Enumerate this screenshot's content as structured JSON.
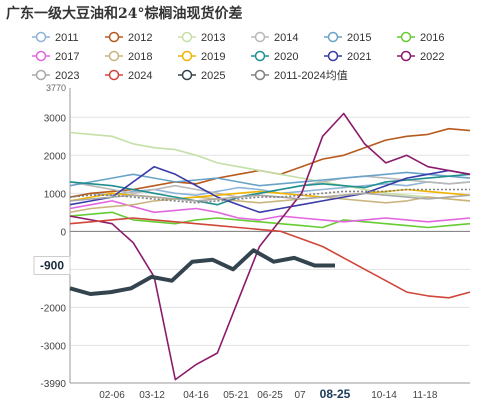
{
  "chart_data": {
    "type": "line",
    "title": "广东一级大豆油和24°棕榈油现货价差",
    "y_ticks": [
      "3000",
      "2000",
      "1000",
      "0",
      "-1000",
      "-2000",
      "-3000",
      "-3990"
    ],
    "y_top_label": "3770",
    "ylim": [
      -3990,
      3770
    ],
    "x_ticks": [
      "02-06",
      "03-12",
      "04-16",
      "05-21",
      "06-25",
      "07",
      "08-25",
      "10-14",
      "11-18"
    ],
    "highlight_x": "08-25",
    "current_value": "-900",
    "grid": true,
    "legend_position": "top",
    "legend": [
      {
        "name": "2011",
        "color": "#8fb4d9"
      },
      {
        "name": "2012",
        "color": "#b85a1e"
      },
      {
        "name": "2013",
        "color": "#c5dfa8"
      },
      {
        "name": "2014",
        "color": "#b9b9b9"
      },
      {
        "name": "2015",
        "color": "#6aa3c8"
      },
      {
        "name": "2016",
        "color": "#66cc33"
      },
      {
        "name": "2017",
        "color": "#e266e0"
      },
      {
        "name": "2018",
        "color": "#c9b57f"
      },
      {
        "name": "2019",
        "color": "#f0b400"
      },
      {
        "name": "2020",
        "color": "#1f8f8f"
      },
      {
        "name": "2021",
        "color": "#3a3aa8"
      },
      {
        "name": "2022",
        "color": "#8b1a6b"
      },
      {
        "name": "2023",
        "color": "#a8a8a8"
      },
      {
        "name": "2024",
        "color": "#d0463a"
      },
      {
        "name": "2025",
        "color": "#34444f"
      },
      {
        "name": "2011-2024均值",
        "color": "#808080"
      }
    ],
    "series": [
      {
        "name": "2011",
        "values": [
          900,
          1000,
          950,
          1050,
          1100,
          1000,
          950,
          1050,
          1150,
          1100,
          1000,
          1050,
          1100,
          1150,
          1200,
          1250,
          1200,
          1300,
          1250,
          1300
        ]
      },
      {
        "name": "2012",
        "values": [
          900,
          1000,
          1050,
          1100,
          1200,
          1300,
          1250,
          1400,
          1500,
          1600,
          1500,
          1700,
          1900,
          2000,
          2200,
          2400,
          2500,
          2550,
          2700,
          2650
        ]
      },
      {
        "name": "2013",
        "values": [
          2600,
          2550,
          2500,
          2300,
          2200,
          2150,
          2000,
          1800,
          1700,
          1600,
          1500,
          1400,
          1300,
          1200,
          1100,
          1000,
          950,
          900,
          850,
          800
        ]
      },
      {
        "name": "2014",
        "values": [
          1300,
          1200,
          1100,
          1000,
          1100,
          1200,
          1100,
          1000,
          900,
          1000,
          1100,
          1200,
          1300,
          1400,
          1450,
          1400,
          1350,
          1300,
          1250,
          1300
        ]
      },
      {
        "name": "2015",
        "values": [
          1200,
          1300,
          1400,
          1500,
          1400,
          1300,
          1350,
          1400,
          1300,
          1200,
          1250,
          1300,
          1350,
          1400,
          1450,
          1500,
          1550,
          1500,
          1450,
          1400
        ]
      },
      {
        "name": "2016",
        "values": [
          400,
          450,
          500,
          300,
          250,
          200,
          300,
          350,
          300,
          250,
          200,
          150,
          100,
          300,
          250,
          200,
          150,
          100,
          150,
          200
        ]
      },
      {
        "name": "2017",
        "values": [
          600,
          700,
          800,
          650,
          500,
          550,
          600,
          500,
          350,
          300,
          400,
          350,
          300,
          250,
          300,
          350,
          300,
          250,
          300,
          350
        ]
      },
      {
        "name": "2018",
        "values": [
          500,
          600,
          650,
          700,
          800,
          850,
          900,
          850,
          800,
          750,
          800,
          850,
          900,
          850,
          800,
          750,
          800,
          900,
          850,
          800
        ]
      },
      {
        "name": "2019",
        "values": [
          800,
          900,
          1000,
          950,
          900,
          850,
          900,
          950,
          1000,
          1050,
          1000,
          950,
          900,
          950,
          1000,
          1050,
          1100,
          1050,
          1000,
          950
        ]
      },
      {
        "name": "2020",
        "values": [
          1300,
          1250,
          1200,
          1100,
          1000,
          900,
          800,
          700,
          900,
          1000,
          1100,
          1200,
          1250,
          1200,
          1150,
          1300,
          1350,
          1400,
          1450,
          1500
        ]
      },
      {
        "name": "2021",
        "values": [
          700,
          800,
          900,
          1300,
          1700,
          1500,
          1200,
          900,
          700,
          500,
          600,
          700,
          800,
          900,
          1000,
          1200,
          1400,
          1500,
          1600,
          1500
        ]
      },
      {
        "name": "2022",
        "values": [
          400,
          300,
          200,
          -300,
          -1200,
          -3900,
          -3500,
          -3200,
          -1800,
          -400,
          300,
          1000,
          2500,
          3100,
          2300,
          1800,
          2000,
          1700,
          1600,
          1500
        ]
      },
      {
        "name": "2023",
        "values": [
          800,
          850,
          900,
          950,
          900,
          850,
          800,
          850,
          900,
          950,
          900,
          850,
          900,
          950,
          1000,
          950,
          900,
          850,
          900,
          950
        ]
      },
      {
        "name": "2024",
        "values": [
          200,
          250,
          300,
          350,
          300,
          250,
          200,
          150,
          100,
          50,
          0,
          -200,
          -400,
          -700,
          -1000,
          -1300,
          -1600,
          -1700,
          -1750,
          -1600
        ]
      },
      {
        "name": "2025",
        "values": [
          -1500,
          -1650,
          -1600,
          -1500,
          -1200,
          -1300,
          -800,
          -750,
          -1000,
          -500,
          -800,
          -700,
          -900,
          -900
        ]
      },
      {
        "name": "2011-2024均值",
        "values": [
          900,
          950,
          950,
          900,
          850,
          800,
          750,
          800,
          850,
          900,
          900,
          950,
          1000,
          1050,
          1050,
          1050,
          1100,
          1100,
          1100,
          1100
        ]
      }
    ]
  }
}
